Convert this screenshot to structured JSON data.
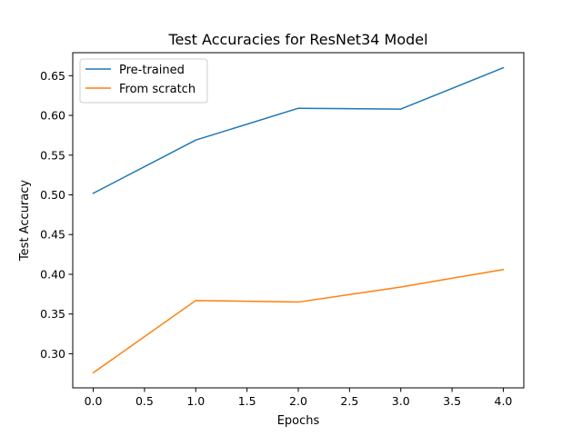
{
  "chart_data": {
    "type": "line",
    "title": "Test Accuracies for ResNet34 Model",
    "xlabel": "Epochs",
    "ylabel": "Test Accuracy",
    "x": [
      0,
      1,
      2,
      3,
      4
    ],
    "series": [
      {
        "name": "Pre-trained",
        "color": "#1f77b4",
        "values": [
          0.502,
          0.569,
          0.609,
          0.608,
          0.66
        ]
      },
      {
        "name": "From scratch",
        "color": "#ff7f0e",
        "values": [
          0.276,
          0.367,
          0.365,
          0.384,
          0.406
        ]
      }
    ],
    "xlim": [
      -0.2,
      4.2
    ],
    "ylim": [
      0.257,
      0.679
    ],
    "xticks": [
      0.0,
      0.5,
      1.0,
      1.5,
      2.0,
      2.5,
      3.0,
      3.5,
      4.0
    ],
    "xtick_labels": [
      "0.0",
      "0.5",
      "1.0",
      "1.5",
      "2.0",
      "2.5",
      "3.0",
      "3.5",
      "4.0"
    ],
    "yticks": [
      0.3,
      0.35,
      0.4,
      0.45,
      0.5,
      0.55,
      0.6,
      0.65
    ],
    "ytick_labels": [
      "0.30",
      "0.35",
      "0.40",
      "0.45",
      "0.50",
      "0.55",
      "0.60",
      "0.65"
    ],
    "grid": false,
    "legend_position": "top-left"
  }
}
